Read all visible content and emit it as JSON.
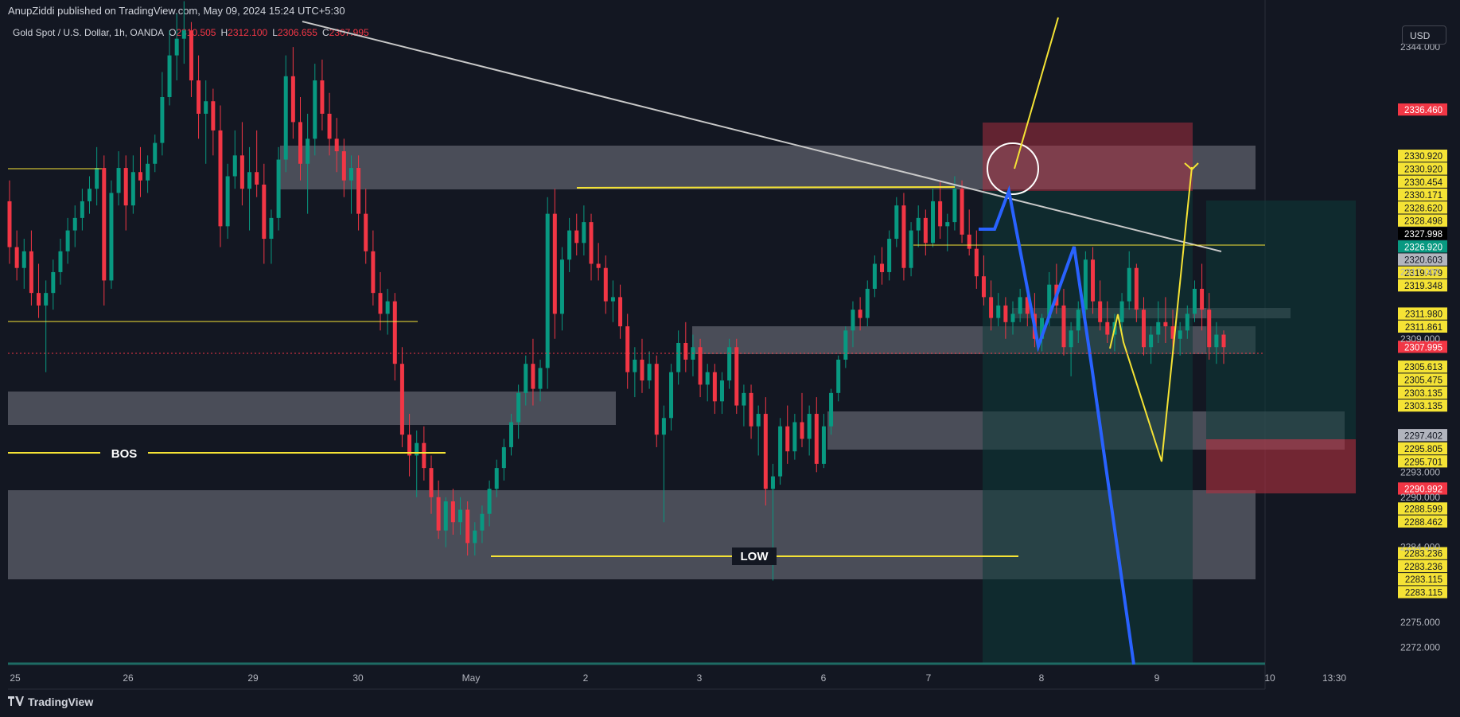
{
  "header": {
    "published": "AnupZiddi published on TradingView.com, May 09, 2024 15:24 UTC+5:30",
    "symbol": "Gold Spot / U.S. Dollar, 1h, OANDA",
    "o_label": "O",
    "o_value": "2310.505",
    "h_label": "H",
    "h_value": "2312.100",
    "l_label": "L",
    "l_value": "2306.655",
    "c_label": "C",
    "c_value": "2307.995"
  },
  "currency_button": "USD",
  "footer": {
    "logo_text": "TradingView"
  },
  "colors": {
    "background": "#131722",
    "up": "#089981",
    "down": "#f23645",
    "zone": "#5d606b",
    "annotation_yellow": "#f5e335",
    "annotation_blue": "#2962ff",
    "trendline": "#c8c8c8"
  },
  "chart_data": {
    "type": "candlestick",
    "title": "Gold Spot / U.S. Dollar, 1h, OANDA",
    "ylim": [
      2268.5,
      2348.5
    ],
    "y_ticks": [
      "2344.000",
      "2317.000",
      "2309.000",
      "2293.000",
      "2290.000",
      "2284.000",
      "2275.000",
      "2272.000"
    ],
    "x_ticks": [
      "25",
      "26",
      "29",
      "30",
      "May",
      "2",
      "3",
      "6",
      "7",
      "8",
      "9",
      "10",
      "13:30"
    ],
    "current_price": "2307.995",
    "price_labels": [
      {
        "value": "2336.460",
        "kind": "red"
      },
      {
        "value": "2330.920",
        "kind": "yellow"
      },
      {
        "value": "2330.920",
        "kind": "yellow"
      },
      {
        "value": "2330.454",
        "kind": "yellow"
      },
      {
        "value": "2330.171",
        "kind": "yellow"
      },
      {
        "value": "2328.620",
        "kind": "yellow"
      },
      {
        "value": "2328.498",
        "kind": "yellow"
      },
      {
        "value": "2327.998",
        "kind": "black"
      },
      {
        "value": "2326.920",
        "kind": "teal"
      },
      {
        "value": "2320.603",
        "kind": "gray"
      },
      {
        "value": "2319.479",
        "kind": "yellow"
      },
      {
        "value": "2319.348",
        "kind": "yellow"
      },
      {
        "value": "2311.980",
        "kind": "yellow"
      },
      {
        "value": "2311.861",
        "kind": "yellow"
      },
      {
        "value": "2307.995",
        "kind": "red"
      },
      {
        "value": "2305.613",
        "kind": "yellow"
      },
      {
        "value": "2305.475",
        "kind": "yellow"
      },
      {
        "value": "2303.135",
        "kind": "yellow"
      },
      {
        "value": "2303.135",
        "kind": "yellow"
      },
      {
        "value": "2297.402",
        "kind": "gray"
      },
      {
        "value": "2295.805",
        "kind": "yellow"
      },
      {
        "value": "2295.701",
        "kind": "yellow"
      },
      {
        "value": "2290.992",
        "kind": "red"
      },
      {
        "value": "2288.599",
        "kind": "yellow"
      },
      {
        "value": "2288.462",
        "kind": "yellow"
      },
      {
        "value": "2283.236",
        "kind": "yellow"
      },
      {
        "value": "2283.236",
        "kind": "yellow"
      },
      {
        "value": "2283.115",
        "kind": "yellow"
      },
      {
        "value": "2283.115",
        "kind": "yellow"
      }
    ],
    "annotations": [
      "BOS",
      "LOW"
    ],
    "ohlc": [
      [
        2325.5,
        2328.0,
        2318.0,
        2320.0
      ],
      [
        2320.0,
        2322.0,
        2316.0,
        2317.5
      ],
      [
        2317.5,
        2321.0,
        2315.0,
        2319.5
      ],
      [
        2319.5,
        2322.0,
        2313.0,
        2314.5
      ],
      [
        2314.5,
        2318.0,
        2311.5,
        2313.0
      ],
      [
        2313.0,
        2316.0,
        2305.0,
        2314.5
      ],
      [
        2314.5,
        2318.5,
        2312.5,
        2317.0
      ],
      [
        2317.0,
        2321.0,
        2315.5,
        2319.5
      ],
      [
        2319.5,
        2323.5,
        2318.0,
        2322.0
      ],
      [
        2322.0,
        2325.0,
        2320.0,
        2323.5
      ],
      [
        2323.5,
        2327.0,
        2322.0,
        2325.5
      ],
      [
        2325.5,
        2328.5,
        2324.0,
        2327.0
      ],
      [
        2327.0,
        2332.0,
        2325.0,
        2329.5
      ],
      [
        2329.5,
        2331.0,
        2313.0,
        2316.0
      ],
      [
        2316.0,
        2328.0,
        2315.0,
        2326.5
      ],
      [
        2326.5,
        2331.5,
        2325.0,
        2329.5
      ],
      [
        2329.5,
        2331.0,
        2322.0,
        2325.0
      ],
      [
        2325.0,
        2331.0,
        2324.0,
        2329.0
      ],
      [
        2329.0,
        2332.0,
        2326.0,
        2328.0
      ],
      [
        2328.0,
        2331.0,
        2326.5,
        2330.0
      ],
      [
        2330.0,
        2333.5,
        2329.0,
        2332.5
      ],
      [
        2332.5,
        2341.0,
        2331.0,
        2338.0
      ],
      [
        2338.0,
        2346.0,
        2337.0,
        2343.0
      ],
      [
        2343.0,
        2348.0,
        2340.0,
        2345.0
      ],
      [
        2345.0,
        2349.5,
        2342.0,
        2346.0
      ],
      [
        2346.0,
        2347.0,
        2338.0,
        2340.0
      ],
      [
        2340.0,
        2343.0,
        2333.0,
        2336.0
      ],
      [
        2336.0,
        2340.0,
        2330.0,
        2337.5
      ],
      [
        2337.5,
        2339.0,
        2331.0,
        2334.0
      ],
      [
        2334.0,
        2337.0,
        2320.0,
        2322.5
      ],
      [
        2322.5,
        2330.0,
        2321.0,
        2328.5
      ],
      [
        2328.5,
        2334.0,
        2327.0,
        2331.0
      ],
      [
        2331.0,
        2335.0,
        2325.0,
        2327.0
      ],
      [
        2327.0,
        2332.0,
        2322.0,
        2329.0
      ],
      [
        2329.0,
        2334.0,
        2326.0,
        2327.5
      ],
      [
        2327.5,
        2330.0,
        2318.0,
        2321.0
      ],
      [
        2321.0,
        2324.5,
        2318.0,
        2323.5
      ],
      [
        2323.5,
        2332.0,
        2322.0,
        2330.5
      ],
      [
        2330.5,
        2343.0,
        2329.0,
        2340.5
      ],
      [
        2340.5,
        2344.0,
        2333.0,
        2335.0
      ],
      [
        2335.0,
        2338.0,
        2328.0,
        2330.0
      ],
      [
        2330.0,
        2336.0,
        2324.0,
        2333.0
      ],
      [
        2333.0,
        2342.0,
        2331.0,
        2340.0
      ],
      [
        2340.0,
        2342.5,
        2334.0,
        2336.0
      ],
      [
        2336.0,
        2338.5,
        2331.0,
        2333.0
      ],
      [
        2333.0,
        2335.5,
        2329.0,
        2331.5
      ],
      [
        2331.5,
        2333.0,
        2326.0,
        2328.0
      ],
      [
        2328.0,
        2331.0,
        2324.0,
        2329.5
      ],
      [
        2329.5,
        2331.0,
        2322.0,
        2324.0
      ],
      [
        2324.0,
        2327.0,
        2318.0,
        2319.5
      ],
      [
        2319.5,
        2322.0,
        2313.0,
        2314.5
      ],
      [
        2314.5,
        2317.0,
        2310.0,
        2312.0
      ],
      [
        2312.0,
        2315.0,
        2309.5,
        2313.5
      ],
      [
        2313.5,
        2314.5,
        2304.0,
        2306.0
      ],
      [
        2306.0,
        2308.0,
        2296.0,
        2297.5
      ],
      [
        2297.5,
        2300.0,
        2292.5,
        2295.0
      ],
      [
        2295.0,
        2298.0,
        2290.0,
        2296.5
      ],
      [
        2296.5,
        2298.5,
        2292.0,
        2293.5
      ],
      [
        2293.5,
        2295.0,
        2288.0,
        2290.0
      ],
      [
        2290.0,
        2292.0,
        2285.0,
        2286.0
      ],
      [
        2286.0,
        2290.0,
        2284.0,
        2289.5
      ],
      [
        2289.5,
        2291.0,
        2285.5,
        2287.0
      ],
      [
        2287.0,
        2290.0,
        2285.5,
        2288.5
      ],
      [
        2288.5,
        2289.5,
        2283.0,
        2284.5
      ],
      [
        2284.5,
        2287.0,
        2283.0,
        2286.0
      ],
      [
        2286.0,
        2289.0,
        2284.5,
        2288.0
      ],
      [
        2288.0,
        2292.0,
        2286.5,
        2291.0
      ],
      [
        2291.0,
        2294.5,
        2290.0,
        2293.5
      ],
      [
        2293.5,
        2297.0,
        2292.0,
        2296.0
      ],
      [
        2296.0,
        2300.0,
        2295.0,
        2299.0
      ],
      [
        2299.0,
        2303.5,
        2297.0,
        2302.5
      ],
      [
        2302.5,
        2307.0,
        2301.0,
        2306.0
      ],
      [
        2306.0,
        2309.0,
        2301.0,
        2303.0
      ],
      [
        2303.0,
        2306.5,
        2301.5,
        2305.5
      ],
      [
        2305.5,
        2326.0,
        2303.0,
        2324.0
      ],
      [
        2324.0,
        2327.0,
        2309.0,
        2312.0
      ],
      [
        2312.0,
        2320.0,
        2310.0,
        2318.5
      ],
      [
        2318.5,
        2323.5,
        2317.0,
        2322.0
      ],
      [
        2322.0,
        2324.0,
        2319.0,
        2320.5
      ],
      [
        2320.5,
        2325.0,
        2319.0,
        2323.0
      ],
      [
        2323.0,
        2324.0,
        2316.0,
        2318.0
      ],
      [
        2318.0,
        2320.5,
        2316.0,
        2317.5
      ],
      [
        2317.5,
        2319.0,
        2312.0,
        2313.5
      ],
      [
        2313.5,
        2316.0,
        2311.0,
        2314.0
      ],
      [
        2314.0,
        2315.5,
        2309.0,
        2310.5
      ],
      [
        2310.5,
        2312.0,
        2303.0,
        2305.0
      ],
      [
        2305.0,
        2308.0,
        2302.0,
        2306.5
      ],
      [
        2306.5,
        2309.0,
        2302.5,
        2304.0
      ],
      [
        2304.0,
        2307.5,
        2303.0,
        2306.0
      ],
      [
        2306.0,
        2307.0,
        2296.0,
        2297.5
      ],
      [
        2297.5,
        2301.0,
        2287.0,
        2299.5
      ],
      [
        2299.5,
        2306.0,
        2298.0,
        2305.0
      ],
      [
        2305.0,
        2310.0,
        2303.5,
        2308.5
      ],
      [
        2308.5,
        2311.0,
        2305.0,
        2306.5
      ],
      [
        2306.5,
        2309.5,
        2304.5,
        2308.0
      ],
      [
        2308.0,
        2309.0,
        2302.0,
        2303.5
      ],
      [
        2303.5,
        2306.0,
        2301.5,
        2305.0
      ],
      [
        2305.0,
        2306.0,
        2300.0,
        2301.5
      ],
      [
        2301.5,
        2305.0,
        2300.0,
        2304.0
      ],
      [
        2304.0,
        2309.0,
        2303.0,
        2308.0
      ],
      [
        2308.0,
        2309.0,
        2300.0,
        2301.0
      ],
      [
        2301.0,
        2303.5,
        2298.5,
        2302.5
      ],
      [
        2302.5,
        2303.5,
        2297.0,
        2298.5
      ],
      [
        2298.5,
        2301.0,
        2295.0,
        2300.0
      ],
      [
        2300.0,
        2302.0,
        2289.0,
        2291.0
      ],
      [
        2291.0,
        2294.0,
        2280.0,
        2292.5
      ],
      [
        2292.5,
        2299.5,
        2291.5,
        2298.5
      ],
      [
        2298.5,
        2301.0,
        2294.0,
        2295.5
      ],
      [
        2295.5,
        2300.0,
        2294.5,
        2299.0
      ],
      [
        2299.0,
        2302.5,
        2296.0,
        2297.0
      ],
      [
        2297.0,
        2301.0,
        2295.0,
        2300.0
      ],
      [
        2300.0,
        2302.0,
        2293.0,
        2294.0
      ],
      [
        2294.0,
        2300.0,
        2293.5,
        2298.5
      ],
      [
        2298.5,
        2303.0,
        2297.5,
        2302.5
      ],
      [
        2302.5,
        2307.0,
        2301.5,
        2306.5
      ],
      [
        2306.5,
        2310.5,
        2305.5,
        2310.0
      ],
      [
        2310.0,
        2313.5,
        2308.0,
        2312.5
      ],
      [
        2312.5,
        2314.0,
        2310.0,
        2311.5
      ],
      [
        2311.5,
        2316.0,
        2310.5,
        2315.0
      ],
      [
        2315.0,
        2319.0,
        2314.0,
        2318.0
      ],
      [
        2318.0,
        2320.0,
        2315.5,
        2317.0
      ],
      [
        2317.0,
        2322.0,
        2316.0,
        2321.0
      ],
      [
        2321.0,
        2326.0,
        2320.0,
        2325.0
      ],
      [
        2325.0,
        2326.5,
        2316.0,
        2317.5
      ],
      [
        2317.5,
        2323.0,
        2316.5,
        2322.0
      ],
      [
        2322.0,
        2325.0,
        2320.0,
        2323.5
      ],
      [
        2323.5,
        2324.5,
        2319.0,
        2320.5
      ],
      [
        2320.5,
        2327.0,
        2320.0,
        2325.5
      ],
      [
        2325.5,
        2328.0,
        2321.0,
        2322.5
      ],
      [
        2322.5,
        2324.0,
        2319.5,
        2323.0
      ],
      [
        2323.0,
        2328.5,
        2322.0,
        2327.0
      ],
      [
        2327.0,
        2328.0,
        2320.5,
        2321.5
      ],
      [
        2321.5,
        2324.5,
        2319.0,
        2319.8
      ],
      [
        2319.8,
        2322.0,
        2315.0,
        2316.5
      ],
      [
        2316.5,
        2319.0,
        2313.0,
        2314.0
      ],
      [
        2314.0,
        2316.0,
        2310.0,
        2311.5
      ],
      [
        2311.5,
        2314.5,
        2310.5,
        2313.0
      ],
      [
        2313.0,
        2314.0,
        2309.0,
        2311.0
      ],
      [
        2311.0,
        2313.5,
        2309.5,
        2312.0
      ],
      [
        2312.0,
        2315.0,
        2311.0,
        2314.0
      ],
      [
        2314.0,
        2315.0,
        2310.5,
        2312.0
      ],
      [
        2312.0,
        2314.5,
        2308.0,
        2309.0
      ],
      [
        2309.0,
        2312.0,
        2307.5,
        2311.5
      ],
      [
        2311.5,
        2317.0,
        2310.5,
        2315.5
      ],
      [
        2315.5,
        2318.0,
        2312.0,
        2313.0
      ],
      [
        2313.0,
        2315.0,
        2307.0,
        2308.0
      ],
      [
        2308.0,
        2311.0,
        2304.5,
        2310.0
      ],
      [
        2310.0,
        2313.5,
        2308.5,
        2312.5
      ],
      [
        2312.5,
        2319.5,
        2311.5,
        2318.5
      ],
      [
        2318.5,
        2320.0,
        2312.0,
        2313.5
      ],
      [
        2313.5,
        2316.0,
        2310.0,
        2311.0
      ],
      [
        2311.0,
        2313.5,
        2308.5,
        2309.5
      ],
      [
        2309.5,
        2312.0,
        2307.5,
        2311.0
      ],
      [
        2311.0,
        2314.5,
        2310.0,
        2313.5
      ],
      [
        2313.5,
        2319.5,
        2312.5,
        2317.5
      ],
      [
        2317.5,
        2318.0,
        2311.0,
        2312.5
      ],
      [
        2312.5,
        2314.0,
        2307.0,
        2308.0
      ],
      [
        2308.0,
        2310.5,
        2306.0,
        2309.5
      ],
      [
        2309.5,
        2313.5,
        2308.5,
        2311.0
      ],
      [
        2311.0,
        2314.0,
        2308.5,
        2310.5
      ],
      [
        2310.5,
        2312.5,
        2307.5,
        2309.0
      ],
      [
        2309.0,
        2311.0,
        2307.0,
        2310.0
      ],
      [
        2310.0,
        2313.0,
        2309.0,
        2312.0
      ],
      [
        2312.0,
        2316.0,
        2311.0,
        2315.0
      ],
      [
        2315.0,
        2318.0,
        2310.0,
        2312.5
      ],
      [
        2312.5,
        2314.5,
        2306.5,
        2308.0
      ],
      [
        2308.0,
        2311.0,
        2306.0,
        2309.5
      ],
      [
        2309.5,
        2310.0,
        2306.0,
        2308.0
      ]
    ]
  }
}
